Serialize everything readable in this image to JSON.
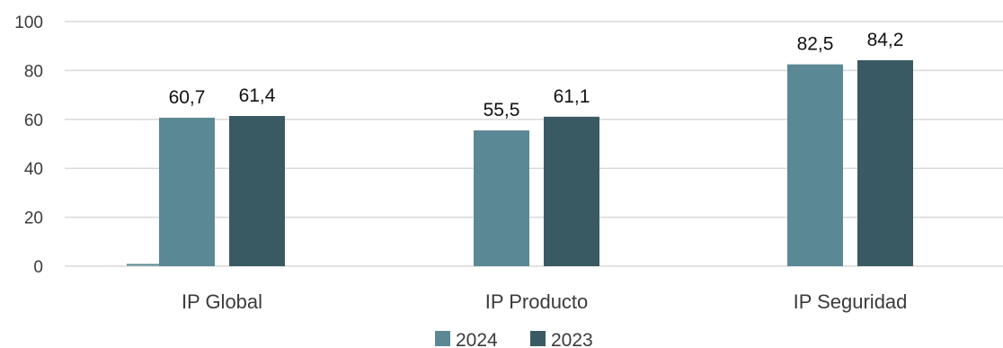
{
  "chart_data": {
    "type": "bar",
    "categories": [
      "IP Global",
      "IP Producto",
      "IP Seguridad"
    ],
    "series": [
      {
        "name": "2024",
        "values": [
          60.7,
          55.5,
          82.5
        ],
        "labels": [
          "60,7",
          "55,5",
          "82,5"
        ],
        "color": "#5a8894"
      },
      {
        "name": "2023",
        "values": [
          61.4,
          61.1,
          84.2
        ],
        "labels": [
          "61,4",
          "61,1",
          "84,2"
        ],
        "color": "#3a5a63"
      }
    ],
    "y_ticks": [
      "0",
      "20",
      "40",
      "60",
      "80",
      "100"
    ],
    "ylim": [
      0,
      100
    ],
    "grid": true,
    "legend": "bottom-center",
    "xlabel": "",
    "ylabel": "",
    "title": ""
  }
}
